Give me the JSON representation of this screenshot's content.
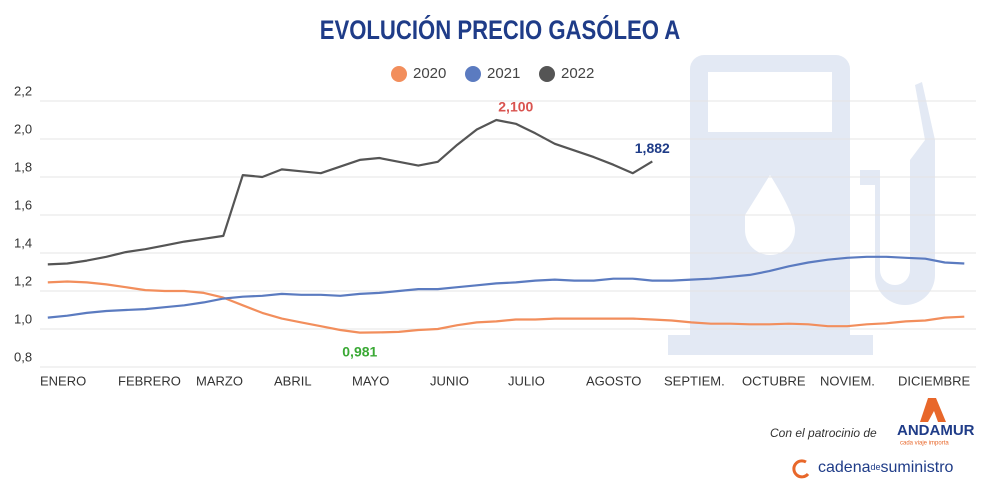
{
  "chart_data": {
    "type": "line",
    "title": "EVOLUCIÓN PRECIO GASÓLEO A",
    "x": [
      0.1,
      0.35,
      0.6,
      0.85,
      1.1,
      1.35,
      1.6,
      1.85,
      2.1,
      2.35,
      2.6,
      2.85,
      3.1,
      3.35,
      3.6,
      3.85,
      4.1,
      4.35,
      4.6,
      4.85,
      5.1,
      5.35,
      5.6,
      5.85,
      6.1,
      6.35,
      6.6,
      6.85,
      7.1,
      7.35,
      7.6,
      7.85,
      8.1,
      8.35,
      8.6,
      8.85,
      9.1,
      9.35,
      9.6,
      9.85,
      10.1,
      10.35,
      10.6,
      10.85,
      11.1,
      11.35,
      11.6,
      11.85
    ],
    "xlim": [
      0,
      12
    ],
    "xticks": [
      {
        "value": 0,
        "label": "ENERO"
      },
      {
        "value": 1,
        "label": "FEBRERO"
      },
      {
        "value": 2,
        "label": "MARZO"
      },
      {
        "value": 3,
        "label": "ABRIL"
      },
      {
        "value": 4,
        "label": "MAYO"
      },
      {
        "value": 5,
        "label": "JUNIO"
      },
      {
        "value": 6,
        "label": "JULIO"
      },
      {
        "value": 7,
        "label": "AGOSTO"
      },
      {
        "value": 8,
        "label": "SEPTIEM."
      },
      {
        "value": 9,
        "label": "OCTUBRE"
      },
      {
        "value": 10,
        "label": "NOVIEM."
      },
      {
        "value": 11,
        "label": "DICIEMBRE"
      }
    ],
    "ylim": [
      0.8,
      2.2
    ],
    "yticks": [
      {
        "value": 0.8,
        "label": "0,8"
      },
      {
        "value": 1.0,
        "label": "1,0"
      },
      {
        "value": 1.2,
        "label": "1,2"
      },
      {
        "value": 1.4,
        "label": "1,4"
      },
      {
        "value": 1.6,
        "label": "1,6"
      },
      {
        "value": 1.8,
        "label": "1,8"
      },
      {
        "value": 2.0,
        "label": "2,0"
      },
      {
        "value": 2.2,
        "label": "2,2"
      }
    ],
    "grid": true,
    "legend": "top",
    "series": [
      {
        "name": "2020",
        "color": "#f28e5c",
        "values": [
          1.245,
          1.25,
          1.245,
          1.235,
          1.22,
          1.205,
          1.2,
          1.2,
          1.19,
          1.165,
          1.125,
          1.085,
          1.055,
          1.035,
          1.015,
          0.995,
          0.981,
          0.982,
          0.985,
          0.995,
          1.0,
          1.02,
          1.035,
          1.04,
          1.05,
          1.05,
          1.055,
          1.055,
          1.055,
          1.055,
          1.055,
          1.05,
          1.045,
          1.035,
          1.028,
          1.028,
          1.025,
          1.025,
          1.028,
          1.025,
          1.015,
          1.015,
          1.025,
          1.03,
          1.04,
          1.045,
          1.06,
          1.065
        ]
      },
      {
        "name": "2021",
        "color": "#5b7bc0",
        "values": [
          1.06,
          1.07,
          1.085,
          1.095,
          1.1,
          1.105,
          1.115,
          1.125,
          1.14,
          1.16,
          1.17,
          1.175,
          1.185,
          1.18,
          1.18,
          1.175,
          1.185,
          1.19,
          1.2,
          1.21,
          1.21,
          1.22,
          1.23,
          1.24,
          1.245,
          1.255,
          1.26,
          1.255,
          1.255,
          1.265,
          1.265,
          1.255,
          1.255,
          1.26,
          1.265,
          1.275,
          1.285,
          1.305,
          1.33,
          1.35,
          1.365,
          1.375,
          1.38,
          1.38,
          1.375,
          1.37,
          1.35,
          1.345
        ]
      },
      {
        "name": "2022",
        "color": "#555555",
        "values": [
          1.34,
          1.345,
          1.36,
          1.38,
          1.405,
          1.42,
          1.44,
          1.46,
          1.475,
          1.49,
          1.81,
          1.8,
          1.84,
          1.83,
          1.82,
          1.855,
          1.89,
          1.9,
          1.88,
          1.86,
          1.88,
          1.97,
          2.05,
          2.1,
          2.08,
          2.03,
          1.975,
          1.94,
          1.905,
          1.865,
          1.82,
          1.882,
          null,
          null,
          null,
          null,
          null,
          null,
          null,
          null,
          null,
          null,
          null,
          null,
          null,
          null,
          null,
          null
        ]
      }
    ],
    "annotations": [
      {
        "text": "2,100",
        "x": 6.1,
        "y": 2.1,
        "color": "#d9534f",
        "position": "above"
      },
      {
        "text": "1,882",
        "x": 7.85,
        "y": 1.882,
        "color": "#1f3c88",
        "position": "above"
      },
      {
        "text": "0,981",
        "x": 4.1,
        "y": 0.981,
        "color": "#3aa935",
        "position": "below"
      }
    ]
  },
  "footer": {
    "sponsor": "Con el patrocinio de",
    "brand": "ANDAMUR",
    "slogan": "cada viaje importa",
    "logo": [
      "cadena",
      "de",
      "suministro"
    ]
  }
}
